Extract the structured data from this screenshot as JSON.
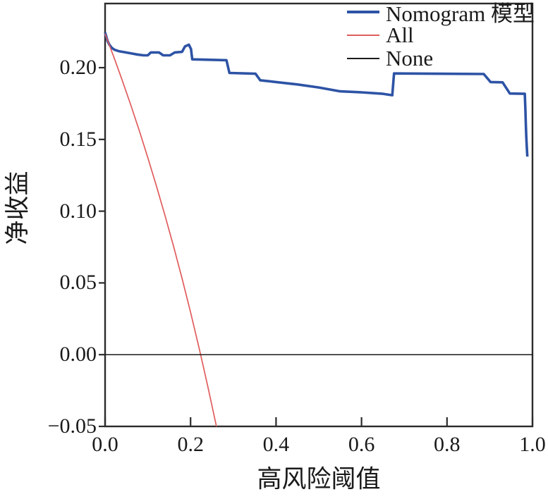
{
  "colors": {
    "nomogram_line": "#2d53a5",
    "all_line": "#e05c5c",
    "none_line": "#1a1a1a",
    "axis": "#2b2b2b",
    "background": "#ffffff",
    "text": "#1a1a1a"
  },
  "legend": {
    "items": [
      {
        "label": "Nomogram 模型",
        "color": "#2d53a5",
        "sample_thickness": 4
      },
      {
        "label": "All",
        "color": "#e05c5c",
        "sample_thickness": 2
      },
      {
        "label": "None",
        "color": "#1a1a1a",
        "sample_thickness": 2
      }
    ]
  },
  "chart_data": {
    "type": "line",
    "title": "",
    "xlabel": "高风险阈值",
    "ylabel": "净收益",
    "xlim": [
      0.0,
      1.0
    ],
    "ylim": [
      -0.05,
      0.2447
    ],
    "grid": false,
    "legend_position": "top-right",
    "x_ticks": [
      0.0,
      0.2,
      0.4,
      0.6,
      0.8,
      1.0
    ],
    "x_tick_labels": [
      "0.0",
      "0.2",
      "0.4",
      "0.6",
      "0.8",
      "1.0"
    ],
    "y_ticks": [
      0.2,
      0.15,
      0.1,
      0.05,
      0.0,
      -0.05
    ],
    "y_tick_labels": [
      "0.20",
      "0.15",
      "0.10",
      "0.05",
      "0.00",
      "−0.05"
    ],
    "series": [
      {
        "id": "nomogram",
        "name": "Nomogram 模型",
        "color": "#2d53a5",
        "stroke_width": 3.6,
        "points": [
          [
            0.0,
            0.2245
          ],
          [
            0.003,
            0.2215
          ],
          [
            0.006,
            0.2185
          ],
          [
            0.01,
            0.216
          ],
          [
            0.015,
            0.214
          ],
          [
            0.022,
            0.2125
          ],
          [
            0.032,
            0.2115
          ],
          [
            0.045,
            0.2108
          ],
          [
            0.06,
            0.21
          ],
          [
            0.075,
            0.2092
          ],
          [
            0.09,
            0.2086
          ],
          [
            0.1,
            0.2086
          ],
          [
            0.107,
            0.2106
          ],
          [
            0.126,
            0.2106
          ],
          [
            0.136,
            0.2086
          ],
          [
            0.152,
            0.2086
          ],
          [
            0.163,
            0.2106
          ],
          [
            0.18,
            0.211
          ],
          [
            0.187,
            0.2148
          ],
          [
            0.196,
            0.216
          ],
          [
            0.201,
            0.213
          ],
          [
            0.204,
            0.2058
          ],
          [
            0.284,
            0.2052
          ],
          [
            0.291,
            0.1963
          ],
          [
            0.352,
            0.1958
          ],
          [
            0.363,
            0.1912
          ],
          [
            0.4,
            0.19
          ],
          [
            0.45,
            0.1883
          ],
          [
            0.5,
            0.1862
          ],
          [
            0.55,
            0.1835
          ],
          [
            0.6,
            0.1828
          ],
          [
            0.65,
            0.1818
          ],
          [
            0.672,
            0.1808
          ],
          [
            0.676,
            0.196
          ],
          [
            0.886,
            0.1956
          ],
          [
            0.902,
            0.19
          ],
          [
            0.93,
            0.1898
          ],
          [
            0.947,
            0.182
          ],
          [
            0.982,
            0.1818
          ],
          [
            0.9835,
            0.17
          ],
          [
            0.9845,
            0.16
          ],
          [
            0.9855,
            0.152
          ],
          [
            0.9865,
            0.146
          ],
          [
            0.988,
            0.138
          ]
        ]
      },
      {
        "id": "all",
        "name": "All",
        "color": "#e05c5c",
        "stroke_width": 1.7,
        "points": [
          [
            0.0,
            0.2236
          ],
          [
            0.02,
            0.2078
          ],
          [
            0.04,
            0.1913
          ],
          [
            0.06,
            0.174
          ],
          [
            0.08,
            0.1561
          ],
          [
            0.1,
            0.1373
          ],
          [
            0.12,
            0.1177
          ],
          [
            0.14,
            0.0972
          ],
          [
            0.16,
            0.0757
          ],
          [
            0.18,
            0.0532
          ],
          [
            0.2,
            0.0295
          ],
          [
            0.22,
            0.0046
          ],
          [
            0.24,
            -0.0216
          ],
          [
            0.2605,
            -0.05
          ]
        ]
      },
      {
        "id": "none",
        "name": "None",
        "color": "#1a1a1a",
        "stroke_width": 1.5,
        "points": [
          [
            0.0,
            0.0
          ],
          [
            1.0,
            0.0
          ]
        ]
      }
    ]
  }
}
